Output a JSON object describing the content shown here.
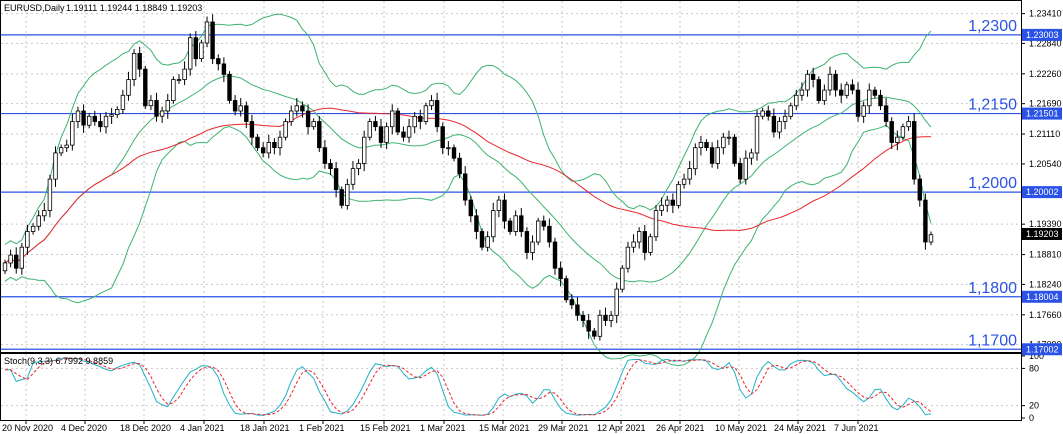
{
  "chart_data": {
    "type": "candlestick",
    "symbol_header": "EURUSD,Daily",
    "ohlc_header": "1.19111 1.19244 1.18849 1.19203",
    "current_price_label": "1.19203",
    "price_range": [
      1.1695,
      1.2365
    ],
    "y_ticks": [
      "1.23410",
      "1.22840",
      "1.22260",
      "1.21690",
      "1.21110",
      "1.20540",
      "1.19390",
      "1.18810",
      "1.18240",
      "1.17660",
      "1.17090"
    ],
    "x_tick_labels": [
      "20 Nov 2020",
      "4 Dec 2020",
      "18 Dec 2020",
      "4 Jan 2021",
      "18 Jan 2021",
      "1 Feb 2021",
      "15 Feb 2021",
      "1 Mar 2021",
      "15 Mar 2021",
      "29 Mar 2021",
      "12 Apr 2021",
      "26 Apr 2021",
      "10 May 2021",
      "24 May 2021",
      "7 Jun 2021"
    ],
    "horizontal_levels": [
      {
        "label": "1,2300",
        "tag": "1.23003",
        "price": 1.23003
      },
      {
        "label": "1,2150",
        "tag": "1.21501",
        "price": 1.21501
      },
      {
        "label": "1,2000",
        "tag": "1.20002",
        "price": 1.20002
      },
      {
        "label": "1,1800",
        "tag": "1.18004",
        "price": 1.18004
      },
      {
        "label": "1,1700",
        "tag": "1.17002",
        "price": 1.17002
      }
    ],
    "indicator_header": "Stoch(9,3,3) 6.7992 9.8859",
    "stoch_levels": [
      "100",
      "80",
      "20",
      "0"
    ],
    "closes": [
      1.1865,
      1.188,
      1.1855,
      1.1895,
      1.1925,
      1.1935,
      1.1955,
      1.1965,
      1.2025,
      1.2075,
      1.2085,
      1.209,
      1.2135,
      1.2155,
      1.2128,
      1.2145,
      1.2135,
      1.2125,
      1.2145,
      1.2148,
      1.2158,
      1.2185,
      1.2215,
      1.2265,
      1.2235,
      1.2165,
      1.2175,
      1.2145,
      1.2155,
      1.2175,
      1.2215,
      1.2215,
      1.2235,
      1.2295,
      1.2255,
      1.2285,
      1.2325,
      1.2255,
      1.2245,
      1.2225,
      1.2175,
      1.2155,
      1.2165,
      1.2135,
      1.2105,
      1.2085,
      1.2075,
      1.2095,
      1.2085,
      1.2105,
      1.2135,
      1.2155,
      1.2165,
      1.2155,
      1.2125,
      1.2135,
      1.2085,
      1.2055,
      1.2045,
      1.2005,
      1.1975,
      1.2015,
      1.2045,
      1.2055,
      1.2105,
      1.2135,
      1.2125,
      1.2095,
      1.2125,
      1.2155,
      1.2115,
      1.2105,
      1.2125,
      1.2145,
      1.2135,
      1.2165,
      1.2175,
      1.2125,
      1.2085,
      1.2085,
      1.2065,
      1.2035,
      1.1985,
      1.1955,
      1.1925,
      1.1895,
      1.1915,
      1.1965,
      1.1985,
      1.1945,
      1.1925,
      1.1955,
      1.1925,
      1.1885,
      1.1905,
      1.1945,
      1.1935,
      1.1905,
      1.1855,
      1.1835,
      1.1795,
      1.1785,
      1.1765,
      1.1755,
      1.1735,
      1.1725,
      1.1765,
      1.1755,
      1.1765,
      1.1815,
      1.1855,
      1.1895,
      1.1905,
      1.1925,
      1.1885,
      1.1915,
      1.1965,
      1.1975,
      1.1985,
      1.1975,
      1.2015,
      1.2025,
      1.2045,
      1.2085,
      1.2095,
      1.2085,
      1.2055,
      1.2085,
      1.2105,
      1.2105,
      1.2055,
      1.2025,
      1.2065,
      1.2075,
      1.2145,
      1.2155,
      1.2145,
      1.2115,
      1.2135,
      1.2145,
      1.2165,
      1.2185,
      1.2195,
      1.2225,
      1.2215,
      1.2175,
      1.2195,
      1.2225,
      1.2195,
      1.2185,
      1.2205,
      1.2195,
      1.2145,
      1.2165,
      1.2195,
      1.2185,
      1.2165,
      1.2135,
      1.2095,
      1.2105,
      1.2125,
      1.2135,
      1.2025,
      1.1985,
      1.1905,
      1.1919
    ]
  }
}
